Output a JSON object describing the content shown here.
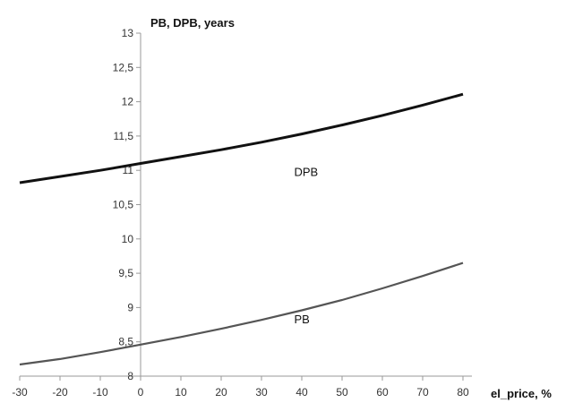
{
  "chart_data": {
    "type": "line",
    "title": "",
    "ylabel": "PB, DPB, years",
    "xlabel": "el_price, %",
    "xlim": [
      -30,
      80
    ],
    "ylim": [
      8,
      13
    ],
    "x_ticks": [
      "-30",
      "-20",
      "-10",
      "0",
      "10",
      "20",
      "30",
      "40",
      "50",
      "60",
      "70",
      "80"
    ],
    "y_ticks": [
      "8",
      "8,5",
      "9",
      "9,5",
      "10",
      "10,5",
      "11",
      "11,5",
      "12",
      "12,5",
      "13"
    ],
    "grid": false,
    "series": [
      {
        "name": "DPB",
        "color": "#111111",
        "x": [
          -30,
          -20,
          -10,
          0,
          10,
          20,
          30,
          40,
          50,
          60,
          70,
          80
        ],
        "y": [
          10.82,
          10.91,
          11.0,
          11.1,
          11.2,
          11.3,
          11.41,
          11.53,
          11.66,
          11.8,
          11.95,
          12.11
        ]
      },
      {
        "name": "PB",
        "color": "#555555",
        "x": [
          -30,
          -20,
          -10,
          0,
          10,
          20,
          30,
          40,
          50,
          60,
          70,
          80
        ],
        "y": [
          8.17,
          8.25,
          8.35,
          8.46,
          8.57,
          8.69,
          8.82,
          8.96,
          9.11,
          9.28,
          9.46,
          9.65
        ]
      }
    ]
  }
}
